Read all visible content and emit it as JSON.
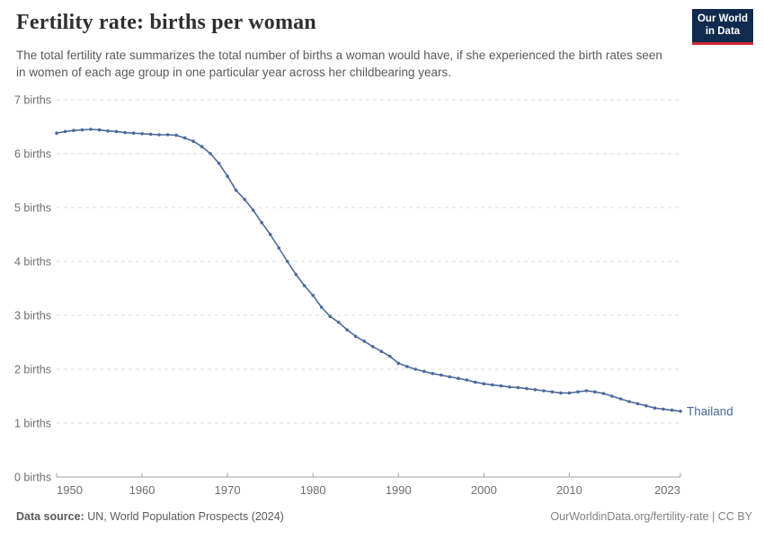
{
  "header": {
    "title": "Fertility rate: births per woman",
    "subtitle": "The total fertility rate summarizes the total number of births a woman would have, if she experienced the birth rates seen in women of each age group in one particular year across her childbearing years.",
    "logo": {
      "line1": "Our World",
      "line2": "in Data"
    }
  },
  "chart_data": {
    "type": "line",
    "title": "Fertility rate: births per woman",
    "ylabel": "",
    "xlabel": "",
    "unit": "births",
    "grid": "dashed horizontal gridlines, legend as end-of-line label",
    "xlim": [
      1950,
      2023
    ],
    "ylim": [
      0,
      7
    ],
    "xticks": [
      {
        "value": 1950,
        "label": "1950"
      },
      {
        "value": 1960,
        "label": "1960"
      },
      {
        "value": 1970,
        "label": "1970"
      },
      {
        "value": 1980,
        "label": "1980"
      },
      {
        "value": 1990,
        "label": "1990"
      },
      {
        "value": 2000,
        "label": "2000"
      },
      {
        "value": 2010,
        "label": "2010"
      },
      {
        "value": 2023,
        "label": "2023"
      }
    ],
    "yticks": [
      {
        "value": 0,
        "label": "0 births"
      },
      {
        "value": 1,
        "label": "1 births"
      },
      {
        "value": 2,
        "label": "2 births"
      },
      {
        "value": 3,
        "label": "3 births"
      },
      {
        "value": 4,
        "label": "4 births"
      },
      {
        "value": 5,
        "label": "5 births"
      },
      {
        "value": 6,
        "label": "6 births"
      },
      {
        "value": 7,
        "label": "7 births"
      }
    ],
    "line_color": "#4C6A9C",
    "years": [
      1950,
      1951,
      1952,
      1953,
      1954,
      1955,
      1956,
      1957,
      1958,
      1959,
      1960,
      1961,
      1962,
      1963,
      1964,
      1965,
      1966,
      1967,
      1968,
      1969,
      1970,
      1971,
      1972,
      1973,
      1974,
      1975,
      1976,
      1977,
      1978,
      1979,
      1980,
      1981,
      1982,
      1983,
      1984,
      1985,
      1986,
      1987,
      1988,
      1989,
      1990,
      1991,
      1992,
      1993,
      1994,
      1995,
      1996,
      1997,
      1998,
      1999,
      2000,
      2001,
      2002,
      2003,
      2004,
      2005,
      2006,
      2007,
      2008,
      2009,
      2010,
      2011,
      2012,
      2013,
      2014,
      2015,
      2016,
      2017,
      2018,
      2019,
      2020,
      2021,
      2022,
      2023
    ],
    "series": [
      {
        "name": "Thailand",
        "values": [
          6.38,
          6.41,
          6.43,
          6.44,
          6.45,
          6.44,
          6.42,
          6.41,
          6.39,
          6.38,
          6.37,
          6.36,
          6.35,
          6.35,
          6.34,
          6.29,
          6.23,
          6.13,
          6.0,
          5.82,
          5.58,
          5.32,
          5.15,
          4.95,
          4.72,
          4.5,
          4.25,
          4.0,
          3.76,
          3.55,
          3.37,
          3.15,
          2.98,
          2.87,
          2.73,
          2.61,
          2.52,
          2.42,
          2.33,
          2.24,
          2.11,
          2.05,
          2.0,
          1.96,
          1.92,
          1.89,
          1.86,
          1.83,
          1.8,
          1.76,
          1.73,
          1.71,
          1.69,
          1.67,
          1.66,
          1.64,
          1.62,
          1.6,
          1.58,
          1.56,
          1.56,
          1.58,
          1.6,
          1.58,
          1.55,
          1.5,
          1.45,
          1.4,
          1.36,
          1.32,
          1.28,
          1.26,
          1.24,
          1.22
        ]
      }
    ]
  },
  "footer": {
    "source_label": "Data source:",
    "source_text": " UN, World Population Prospects (2024)",
    "link_text": "OurWorldinData.org/fertility-rate | CC BY"
  },
  "colors": {
    "line": "#4C6A9C",
    "logo_bg": "#112b4e",
    "logo_stripe": "#d12b35",
    "axis": "#a1a1a1",
    "gridline": "#dedede",
    "tick_text": "#6e6e6e"
  }
}
